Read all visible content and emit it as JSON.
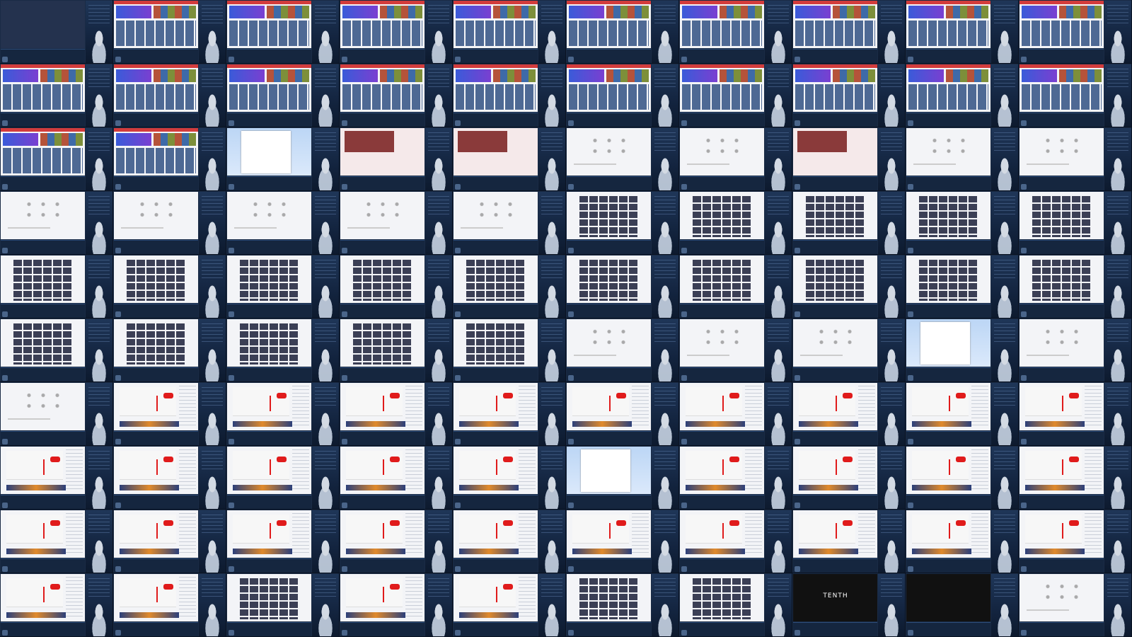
{
  "grid": {
    "columns": 10,
    "rows": 10,
    "tiles_count": 100
  },
  "caption_lines": [
    "",
    ""
  ],
  "tiles": [
    {
      "variant": "first"
    },
    {
      "variant": "banner"
    },
    {
      "variant": "banner"
    },
    {
      "variant": "banner"
    },
    {
      "variant": "banner"
    },
    {
      "variant": "banner"
    },
    {
      "variant": "banner"
    },
    {
      "variant": "banner"
    },
    {
      "variant": "banner"
    },
    {
      "variant": "banner"
    },
    {
      "variant": "banner"
    },
    {
      "variant": "banner"
    },
    {
      "variant": "banner"
    },
    {
      "variant": "banner"
    },
    {
      "variant": "banner"
    },
    {
      "variant": "banner"
    },
    {
      "variant": "banner"
    },
    {
      "variant": "banner"
    },
    {
      "variant": "banner"
    },
    {
      "variant": "banner"
    },
    {
      "variant": "banner"
    },
    {
      "variant": "banner"
    },
    {
      "variant": "sky"
    },
    {
      "variant": "anime"
    },
    {
      "variant": "anime"
    },
    {
      "variant": "plain"
    },
    {
      "variant": "plain"
    },
    {
      "variant": "anime"
    },
    {
      "variant": "plain"
    },
    {
      "variant": "plain"
    },
    {
      "variant": "plain"
    },
    {
      "variant": "plain"
    },
    {
      "variant": "plain"
    },
    {
      "variant": "plain"
    },
    {
      "variant": "plain"
    },
    {
      "variant": "grid"
    },
    {
      "variant": "grid"
    },
    {
      "variant": "grid"
    },
    {
      "variant": "grid"
    },
    {
      "variant": "grid"
    },
    {
      "variant": "grid"
    },
    {
      "variant": "grid"
    },
    {
      "variant": "grid"
    },
    {
      "variant": "grid"
    },
    {
      "variant": "grid"
    },
    {
      "variant": "grid"
    },
    {
      "variant": "grid"
    },
    {
      "variant": "grid"
    },
    {
      "variant": "grid"
    },
    {
      "variant": "grid"
    },
    {
      "variant": "grid"
    },
    {
      "variant": "grid"
    },
    {
      "variant": "grid"
    },
    {
      "variant": "grid"
    },
    {
      "variant": "grid"
    },
    {
      "variant": "plain"
    },
    {
      "variant": "plain"
    },
    {
      "variant": "plain"
    },
    {
      "variant": "sky"
    },
    {
      "variant": "plain"
    },
    {
      "variant": "plain"
    },
    {
      "variant": "red"
    },
    {
      "variant": "red"
    },
    {
      "variant": "red"
    },
    {
      "variant": "red"
    },
    {
      "variant": "red"
    },
    {
      "variant": "red"
    },
    {
      "variant": "red"
    },
    {
      "variant": "red"
    },
    {
      "variant": "red"
    },
    {
      "variant": "red"
    },
    {
      "variant": "red"
    },
    {
      "variant": "red"
    },
    {
      "variant": "red"
    },
    {
      "variant": "red"
    },
    {
      "variant": "sky"
    },
    {
      "variant": "red"
    },
    {
      "variant": "red"
    },
    {
      "variant": "red"
    },
    {
      "variant": "red"
    },
    {
      "variant": "red"
    },
    {
      "variant": "red"
    },
    {
      "variant": "red"
    },
    {
      "variant": "red"
    },
    {
      "variant": "red"
    },
    {
      "variant": "red"
    },
    {
      "variant": "red"
    },
    {
      "variant": "red"
    },
    {
      "variant": "red"
    },
    {
      "variant": "red"
    },
    {
      "variant": "red"
    },
    {
      "variant": "red"
    },
    {
      "variant": "grid"
    },
    {
      "variant": "red"
    },
    {
      "variant": "red"
    },
    {
      "variant": "grid"
    },
    {
      "variant": "grid"
    },
    {
      "variant": "dark",
      "logo": "TENTH"
    },
    {
      "variant": "dark",
      "logo": ""
    },
    {
      "variant": "plain"
    }
  ],
  "colors": {
    "background": "#0f1b2d",
    "panel": "#1a2b45",
    "accent_red": "#e01b1b",
    "accent_blue": "#3a5bd9"
  }
}
